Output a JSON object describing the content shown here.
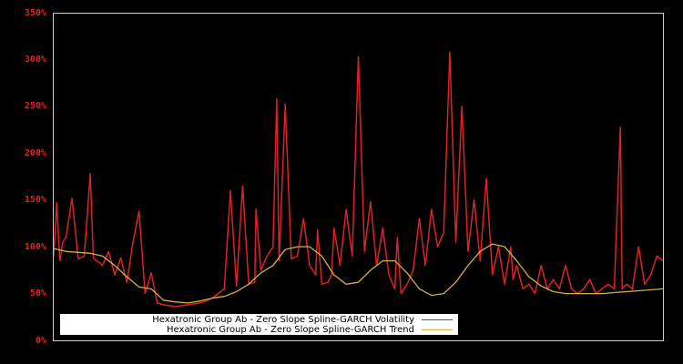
{
  "chart_data": {
    "type": "line",
    "title": "",
    "xlabel": "",
    "ylabel": "",
    "ylim": [
      0,
      350
    ],
    "y_ticks": [
      "0%",
      "50%",
      "100%",
      "150%",
      "200%",
      "250%",
      "300%",
      "350%"
    ],
    "grid": false,
    "background": "#000000",
    "axis_color": "#cccccc",
    "tick_label_color": "#dd2222",
    "legend_position": "lower-left, inside",
    "x_index_range": [
      0,
      100
    ],
    "series": [
      {
        "name": "Hexatronic Group Ab - Zero Slope Spline-GARCH Volatility",
        "color": "#dd2222",
        "x": [
          0,
          0.5,
          1,
          1.5,
          2,
          3,
          4,
          5,
          6,
          6.5,
          7,
          7.5,
          8,
          9,
          10,
          11,
          12,
          13,
          14,
          15,
          16,
          17,
          18,
          19,
          20,
          21,
          22,
          23,
          24,
          25,
          26,
          27,
          28,
          29,
          30,
          31,
          32,
          33,
          33.2,
          34,
          35,
          36,
          36.6,
          37,
          38,
          39,
          40,
          41,
          42,
          43,
          43.3,
          44,
          45,
          45.6,
          46,
          47,
          48,
          49,
          50,
          51,
          52,
          53,
          54,
          55,
          56,
          56.4,
          57,
          58,
          59,
          60,
          61,
          62,
          63,
          64,
          65,
          66,
          67,
          68,
          69,
          70,
          71,
          72,
          73,
          74,
          75,
          75.4,
          76,
          77,
          78,
          79,
          80,
          81,
          82,
          83,
          84,
          85,
          86,
          87,
          88,
          89,
          90,
          91,
          92,
          93,
          93.3,
          94,
          95,
          96,
          97,
          98,
          99,
          100
        ],
        "values": [
          90,
          147,
          85,
          105,
          110,
          152,
          87,
          90,
          178,
          88,
          85,
          83,
          80,
          95,
          70,
          88,
          62,
          105,
          138,
          50,
          72,
          40,
          38,
          37,
          36,
          37,
          38,
          39,
          40,
          42,
          45,
          50,
          55,
          160,
          58,
          165,
          60,
          62,
          140,
          75,
          90,
          100,
          258,
          85,
          252,
          87,
          90,
          130,
          80,
          70,
          118,
          60,
          62,
          70,
          120,
          80,
          140,
          90,
          303,
          95,
          148,
          80,
          120,
          70,
          55,
          110,
          50,
          60,
          75,
          130,
          80,
          140,
          100,
          115,
          308,
          105,
          250,
          95,
          150,
          85,
          173,
          70,
          100,
          60,
          100,
          65,
          80,
          55,
          60,
          50,
          80,
          55,
          65,
          55,
          80,
          55,
          50,
          55,
          65,
          50,
          55,
          60,
          55,
          228,
          55,
          60,
          55,
          100,
          60,
          70,
          90,
          85
        ]
      },
      {
        "name": "Hexatronic Group Ab - Zero Slope Spline-GARCH Trend",
        "color": "#d4b040",
        "x": [
          0,
          2,
          4,
          6,
          8,
          10,
          12,
          14,
          16,
          18,
          20,
          22,
          24,
          26,
          28,
          30,
          32,
          34,
          36,
          38,
          40,
          42,
          44,
          46,
          48,
          50,
          52,
          54,
          56,
          58,
          60,
          62,
          64,
          66,
          68,
          70,
          72,
          74,
          76,
          78,
          80,
          82,
          84,
          86,
          88,
          90,
          92,
          94,
          96,
          98,
          100
        ],
        "values": [
          98,
          95,
          94,
          93,
          90,
          80,
          68,
          57,
          55,
          43,
          41,
          40,
          42,
          45,
          47,
          52,
          60,
          72,
          80,
          97,
          100,
          100,
          90,
          70,
          60,
          62,
          75,
          85,
          85,
          72,
          55,
          48,
          50,
          62,
          80,
          95,
          103,
          100,
          85,
          68,
          58,
          52,
          50,
          50,
          50,
          50,
          51,
          52,
          53,
          54,
          55
        ]
      }
    ]
  },
  "y_axis": {
    "tick_labels": [
      "350%",
      "300%",
      "250%",
      "200%",
      "150%",
      "100%",
      "50%",
      "0%"
    ]
  },
  "legend": {
    "items": [
      {
        "label": "Hexatronic Group Ab - Zero Slope Spline-GARCH Volatility",
        "color": "#dd2222"
      },
      {
        "label": "Hexatronic Group Ab - Zero Slope Spline-GARCH Trend",
        "color": "#d4b040"
      }
    ]
  }
}
